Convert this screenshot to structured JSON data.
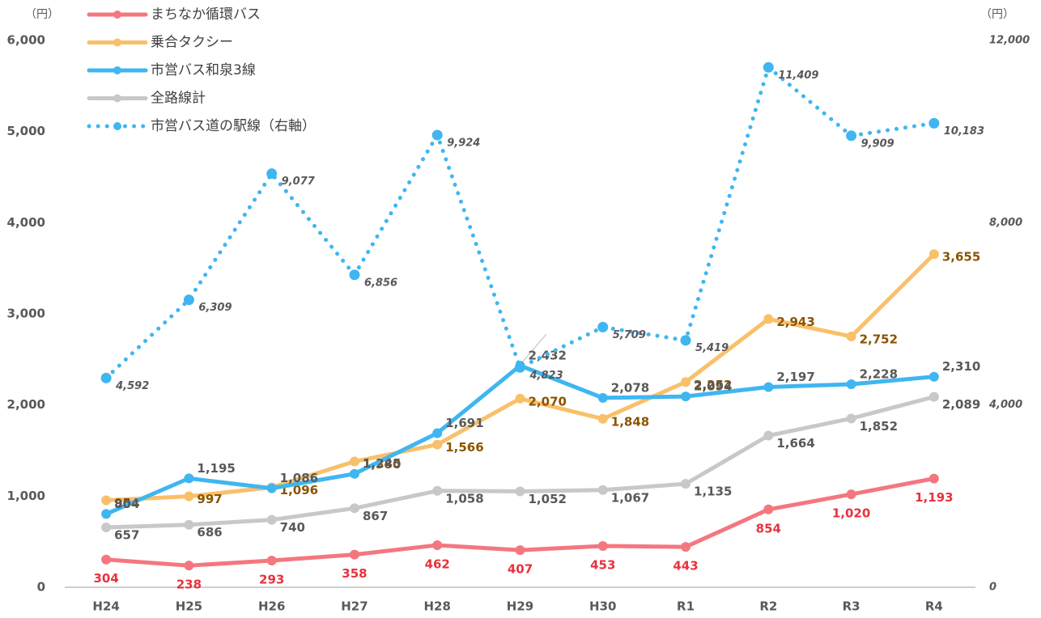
{
  "chart_data": {
    "type": "line",
    "y_unit": "（円）",
    "y2_unit": "（円）",
    "categories": [
      "H24",
      "H25",
      "H26",
      "H27",
      "H28",
      "H29",
      "H30",
      "R1",
      "R2",
      "R3",
      "R4"
    ],
    "ylim": [
      0,
      6000
    ],
    "yticks": [
      0,
      {
        "value": 1000,
        "label": "1,000"
      },
      {
        "value": 2000,
        "label": "2,000"
      },
      {
        "value": 3000,
        "label": "3,000"
      },
      {
        "value": 4000,
        "label": "4,000"
      },
      {
        "value": 5000,
        "label": "5,000"
      },
      {
        "value": 6000,
        "label": "6,000"
      }
    ],
    "y2lim": [
      0,
      12000
    ],
    "y2ticks": [
      0,
      {
        "value": 4000,
        "label": "4,000"
      },
      {
        "value": 8000,
        "label": "8,000"
      },
      {
        "value": 12000,
        "label": "12,000"
      }
    ],
    "series": [
      {
        "name": "まちなか循環バス",
        "color": "#f4777f",
        "label_color": "#e8323e",
        "values": [
          304,
          238,
          293,
          358,
          462,
          407,
          453,
          443,
          854,
          1020,
          1193
        ],
        "value_labels": [
          "304",
          "238",
          "293",
          "358",
          "462",
          "407",
          "453",
          "443",
          "854",
          "1,020",
          "1,193"
        ]
      },
      {
        "name": "乗合タクシー",
        "color": "#f9c06a",
        "label_color": "#8a5400",
        "values": [
          954,
          997,
          1096,
          1380,
          1566,
          2070,
          1848,
          2252,
          2943,
          2752,
          3655
        ],
        "value_labels": [
          "954",
          "997",
          "1,096",
          "1,380",
          "1,566",
          "2,070",
          "1,848",
          "2,252",
          "2,943",
          "2,752",
          "3,655"
        ]
      },
      {
        "name": "市営バス和泉3線",
        "color": "#3fb6f0",
        "label_color": "#595959",
        "values": [
          804,
          1195,
          1086,
          1245,
          1691,
          2432,
          2078,
          2094,
          2197,
          2228,
          2310
        ],
        "value_labels": [
          "804",
          "1,195",
          "1,086",
          "1,245",
          "1,691",
          "2,432",
          "2,078",
          "2,094",
          "2,197",
          "2,228",
          "2,310"
        ]
      },
      {
        "name": "全路線計",
        "color": "#c8c8c8",
        "label_color": "#595959",
        "values": [
          657,
          686,
          740,
          867,
          1058,
          1052,
          1067,
          1135,
          1664,
          1852,
          2089
        ],
        "value_labels": [
          "657",
          "686",
          "740",
          "867",
          "1,058",
          "1,052",
          "1,067",
          "1,135",
          "1,664",
          "1,852",
          "2,089"
        ]
      },
      {
        "name": "市営バス道の駅線（右軸）",
        "color": "#3fb6f0",
        "label_color": "#595959",
        "axis": "y2",
        "dashed": true,
        "values": [
          4592,
          6309,
          9077,
          6856,
          9924,
          4823,
          5709,
          5419,
          11409,
          9909,
          10183
        ],
        "value_labels": [
          "4,592",
          "6,309",
          "9,077",
          "6,856",
          "9,924",
          "4,823",
          "5,709",
          "5,419",
          "11,409",
          "9,909",
          "10,183"
        ]
      }
    ]
  }
}
